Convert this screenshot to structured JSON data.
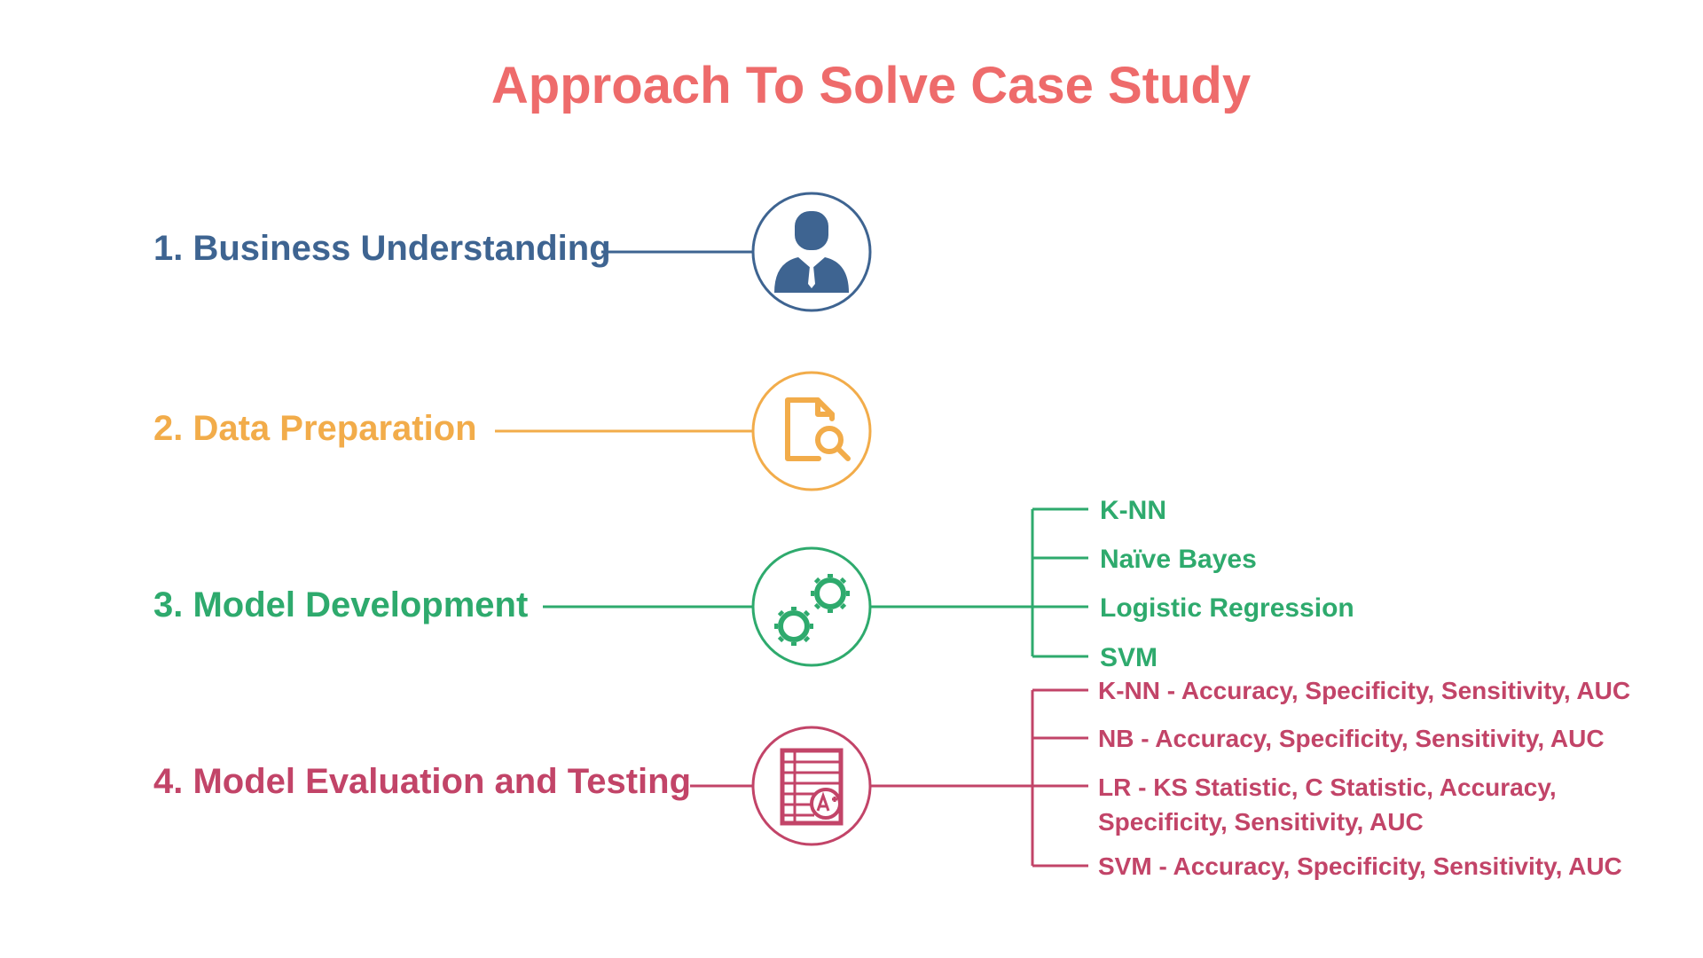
{
  "title": "Approach To Solve Case Study",
  "colors": {
    "title": "#EE6B6B",
    "business": "#3E6491",
    "data": "#F2AC4A",
    "model": "#2EAA6D",
    "evaluation": "#C24468"
  },
  "steps": [
    {
      "label": "1. Business Understanding",
      "icon": "businessman-icon"
    },
    {
      "label": "2. Data Preparation",
      "icon": "document-search-icon"
    },
    {
      "label": "3. Model Development",
      "icon": "gears-icon"
    },
    {
      "label": "4. Model Evaluation and Testing",
      "icon": "graded-report-icon"
    }
  ],
  "models": [
    "K-NN",
    "Naïve Bayes",
    "Logistic Regression",
    "SVM"
  ],
  "evaluations": [
    "K-NN - Accuracy, Specificity, Sensitivity, AUC",
    "NB - Accuracy, Specificity, Sensitivity, AUC",
    "LR - KS Statistic, C Statistic, Accuracy,",
    "Specificity, Sensitivity, AUC",
    "SVM - Accuracy, Specificity, Sensitivity, AUC"
  ]
}
